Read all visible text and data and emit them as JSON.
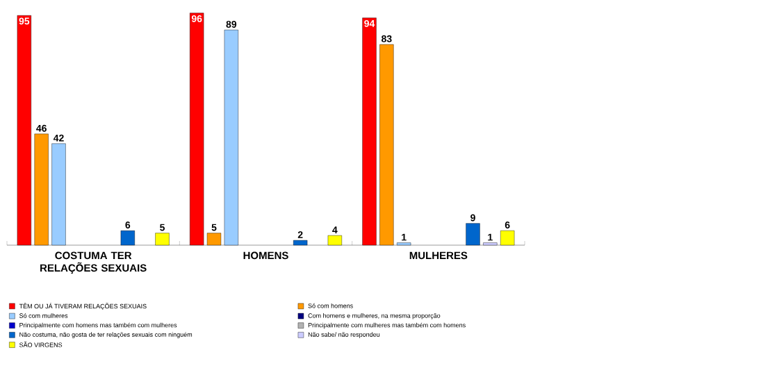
{
  "chart_data": {
    "type": "bar",
    "categories": [
      "COSTUMA TER RELAÇÕES SEXUAIS",
      "HOMENS",
      "MULHERES"
    ],
    "series": [
      {
        "name": "TÊM OU JÁ TIVERAM RELAÇÕES SEXUAIS",
        "color": "#ff0000",
        "values": [
          95,
          96,
          94
        ]
      },
      {
        "name": "Só com homens",
        "color": "#ff9900",
        "values": [
          46,
          5,
          83
        ]
      },
      {
        "name": "Só com mulheres",
        "color": "#99ccff",
        "values": [
          42,
          89,
          1
        ]
      },
      {
        "name": "Com homens e mulheres, na mesma proporção",
        "color": "#000080",
        "values": [
          null,
          null,
          null
        ]
      },
      {
        "name": "Principalmente com homens mas também com mulheres",
        "color": "#0000cc",
        "values": [
          null,
          null,
          null
        ]
      },
      {
        "name": "Principalmente com mulheres mas também com homens",
        "color": "#b2b2b2",
        "values": [
          null,
          null,
          null
        ]
      },
      {
        "name": "Não costuma, não gosta de ter relações sexuais com ninguém",
        "color": "#0066cc",
        "values": [
          6,
          2,
          9
        ]
      },
      {
        "name": "Não sabe/ não respondeu",
        "color": "#ccccff",
        "values": [
          null,
          null,
          1
        ]
      },
      {
        "name": "SÃO VIRGENS",
        "color": "#ffff00",
        "values": [
          5,
          4,
          6
        ]
      }
    ],
    "data_labels": true,
    "legend": "bottom left"
  }
}
